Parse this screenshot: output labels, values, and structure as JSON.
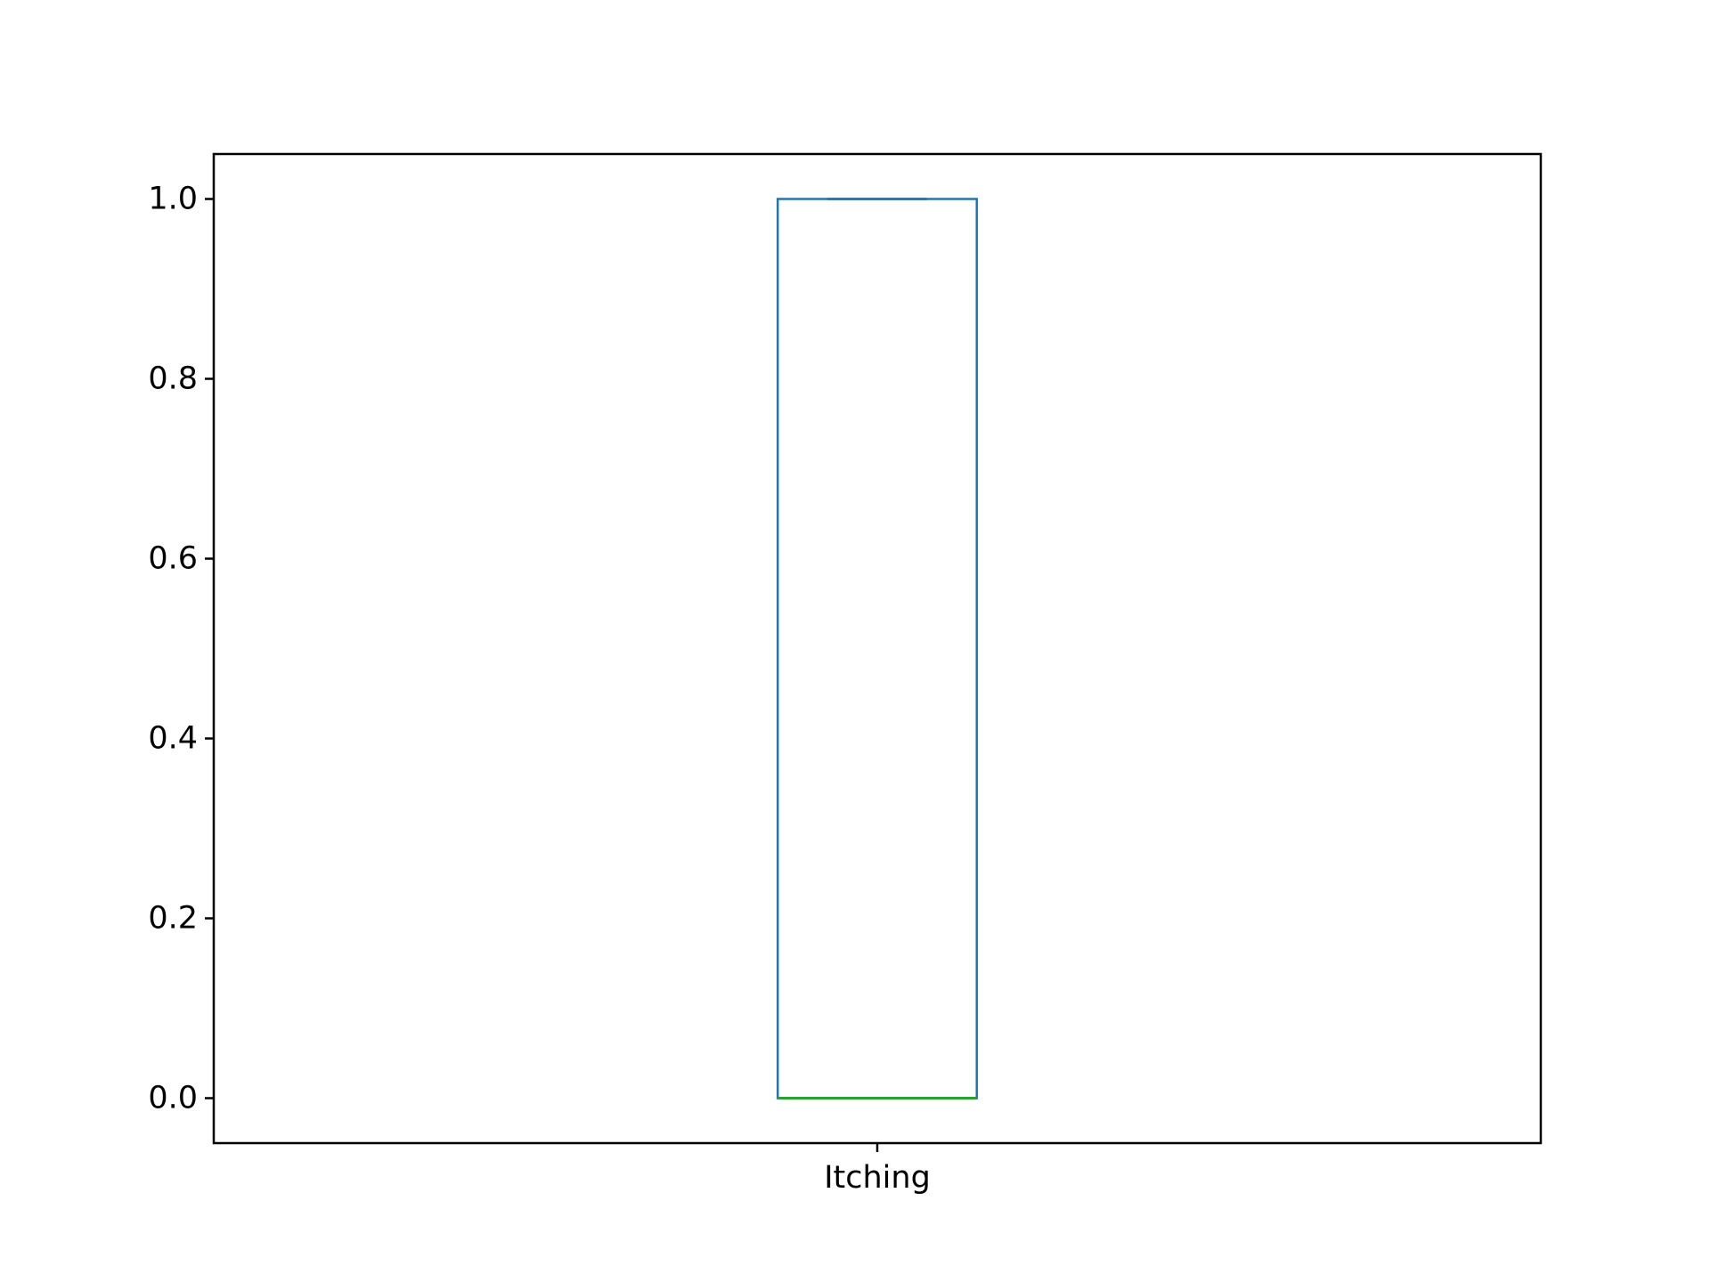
{
  "chart_data": {
    "type": "box",
    "categories": [
      "Itching"
    ],
    "series": [
      {
        "whisker_low": 0.0,
        "q1": 0.0,
        "median": 0.0,
        "q3": 1.0,
        "whisker_high": 1.0
      }
    ],
    "ylim": [
      -0.05,
      1.05
    ],
    "yticks": [
      0.0,
      0.2,
      0.4,
      0.6,
      0.8,
      1.0
    ],
    "ytick_labels": [
      "0.0",
      "0.2",
      "0.4",
      "0.6",
      "0.8",
      "1.0"
    ],
    "grid": false,
    "colors": {
      "box": "#1f77b4",
      "median": "#2ca02c",
      "whisker": "#000000"
    }
  }
}
